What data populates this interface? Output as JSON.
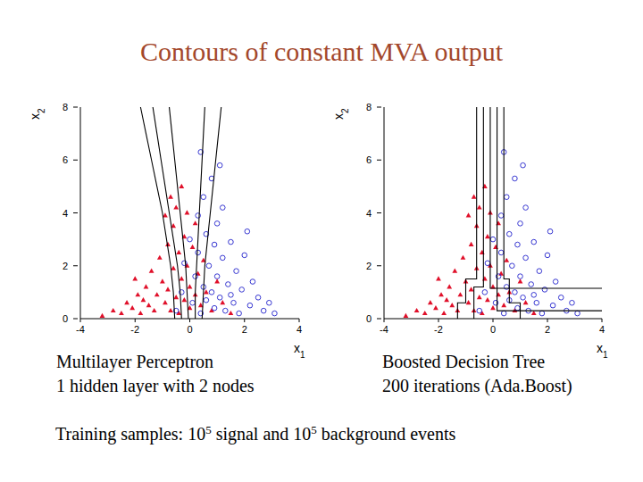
{
  "slide": {
    "title": "Contours of constant MVA output",
    "footer": [
      {
        "text": "Training samples:  10"
      },
      {
        "text": "5",
        "sup": true
      },
      {
        "text": " signal and 10"
      },
      {
        "text": "5",
        "sup": true
      },
      {
        "text": " background events"
      }
    ]
  },
  "chart_data": [
    {
      "type": "scatter",
      "title": "Multilayer Perceptron",
      "subtitle": "1 hidden layer with 2 nodes",
      "x_label": "x1",
      "y_label": "x2",
      "xlim": [
        -4,
        4
      ],
      "xticks": [
        -4,
        -2,
        0,
        2,
        4
      ],
      "ylim": [
        0,
        8
      ],
      "yticks": [
        0,
        2,
        4,
        6,
        8
      ],
      "series": [
        {
          "color": "#e0102a",
          "marker": "triangle",
          "x": [
            -3.2,
            -2.8,
            -2.5,
            -2.3,
            -2.1,
            -1.9,
            -1.8,
            -1.6,
            -1.5,
            -1.4,
            -1.3,
            -1.2,
            -1.1,
            -1.0,
            -0.9,
            -0.8,
            -0.8,
            -0.7,
            -0.6,
            -0.6,
            -0.5,
            -0.5,
            -0.4,
            -0.4,
            -0.3,
            -0.3,
            -0.2,
            -0.2,
            -0.1,
            -0.1,
            0.0,
            0.0,
            0.1,
            0.2,
            0.2,
            0.3,
            0.4,
            0.5,
            0.6,
            0.8,
            1.0,
            1.2,
            1.5,
            -2.0,
            -1.7,
            -0.9,
            -0.7
          ],
          "values": [
            0.1,
            0.3,
            0.2,
            0.6,
            0.4,
            0.9,
            0.2,
            1.2,
            0.5,
            1.8,
            0.3,
            0.9,
            2.3,
            1.4,
            0.6,
            2.8,
            1.1,
            0.3,
            3.5,
            1.9,
            0.8,
            4.2,
            2.5,
            0.2,
            1.5,
            5.0,
            3.1,
            0.7,
            2.0,
            4.0,
            1.2,
            0.4,
            2.7,
            0.9,
            3.6,
            1.7,
            0.5,
            2.2,
            1.0,
            0.3,
            1.4,
            0.6,
            0.2,
            1.5,
            0.7,
            3.9,
            4.6
          ]
        },
        {
          "color": "#2222cc",
          "marker": "open-circle",
          "x": [
            -0.5,
            -0.3,
            -0.2,
            0.0,
            0.1,
            0.2,
            0.3,
            0.3,
            0.4,
            0.5,
            0.5,
            0.6,
            0.6,
            0.7,
            0.8,
            0.8,
            0.9,
            0.9,
            1.0,
            1.0,
            1.1,
            1.2,
            1.2,
            1.3,
            1.4,
            1.5,
            1.6,
            1.7,
            1.8,
            1.9,
            2.0,
            2.2,
            2.3,
            2.5,
            2.7,
            2.9,
            3.1,
            0.4,
            1.1,
            2.1,
            1.5
          ],
          "values": [
            0.3,
            1.0,
            2.1,
            3.0,
            0.6,
            1.6,
            3.9,
            2.5,
            0.2,
            1.2,
            4.6,
            3.2,
            0.7,
            2.0,
            5.3,
            1.0,
            2.8,
            0.4,
            3.6,
            1.6,
            0.8,
            2.3,
            4.2,
            0.3,
            1.3,
            2.9,
            0.6,
            1.8,
            0.2,
            1.1,
            2.4,
            0.5,
            1.4,
            0.8,
            0.3,
            0.6,
            0.2,
            6.3,
            5.8,
            3.3,
            0.9
          ]
        },
        {
          "type": "line",
          "color": "#000000",
          "x": [
            -0.55,
            -0.6,
            -0.7,
            -0.85,
            -1.0,
            -1.2,
            -1.4,
            -1.6,
            -1.8
          ],
          "values": [
            0,
            1,
            2,
            3,
            4,
            5,
            6,
            7,
            8
          ]
        },
        {
          "type": "line",
          "color": "#000000",
          "x": [
            -0.3,
            -0.35,
            -0.45,
            -0.6,
            -0.75,
            -0.9,
            -1.05,
            -1.2,
            -1.35
          ],
          "values": [
            0,
            1,
            2,
            3,
            4,
            5,
            6,
            7,
            8
          ]
        },
        {
          "type": "line",
          "color": "#000000",
          "x": [
            -0.05,
            -0.1,
            -0.15,
            -0.25,
            -0.35,
            -0.45,
            -0.55,
            -0.65,
            -0.75
          ],
          "values": [
            0,
            1,
            2,
            3,
            4,
            5,
            6,
            7,
            8
          ]
        },
        {
          "type": "line",
          "color": "#000000",
          "x": [
            0.2,
            0.2,
            0.25,
            0.3,
            0.35,
            0.4,
            0.45,
            0.5,
            0.55
          ],
          "values": [
            0,
            1,
            2,
            3,
            4,
            5,
            6,
            7,
            8
          ]
        },
        {
          "type": "line",
          "color": "#000000",
          "x": [
            0.45,
            0.5,
            0.55,
            0.65,
            0.75,
            0.85,
            0.95,
            1.05,
            1.15
          ],
          "values": [
            0,
            1,
            2,
            3,
            4,
            5,
            6,
            7,
            8
          ]
        }
      ]
    },
    {
      "type": "scatter",
      "title": "Boosted Decision Tree",
      "subtitle": "200 iterations (Ada.Boost)",
      "x_label": "x1",
      "y_label": "x2",
      "xlim": [
        -4,
        4
      ],
      "xticks": [
        -4,
        -2,
        0,
        2,
        4
      ],
      "ylim": [
        0,
        8
      ],
      "yticks": [
        0,
        2,
        4,
        6,
        8
      ],
      "series": [
        {
          "color": "#e0102a",
          "marker": "triangle",
          "x": [
            -3.2,
            -2.8,
            -2.5,
            -2.3,
            -2.1,
            -1.9,
            -1.8,
            -1.6,
            -1.5,
            -1.4,
            -1.3,
            -1.2,
            -1.1,
            -1.0,
            -0.9,
            -0.8,
            -0.8,
            -0.7,
            -0.6,
            -0.6,
            -0.5,
            -0.5,
            -0.4,
            -0.4,
            -0.3,
            -0.3,
            -0.2,
            -0.2,
            -0.1,
            -0.1,
            0.0,
            0.0,
            0.1,
            0.2,
            0.2,
            0.3,
            0.4,
            0.5,
            0.6,
            0.8,
            1.0,
            1.2,
            1.5,
            -2.0,
            -1.7,
            -0.9,
            -0.7
          ],
          "values": [
            0.1,
            0.3,
            0.2,
            0.6,
            0.4,
            0.9,
            0.2,
            1.2,
            0.5,
            1.8,
            0.3,
            0.9,
            2.3,
            1.4,
            0.6,
            2.8,
            1.1,
            0.3,
            3.5,
            1.9,
            0.8,
            4.2,
            2.5,
            0.2,
            1.5,
            5.0,
            3.1,
            0.7,
            2.0,
            4.0,
            1.2,
            0.4,
            2.7,
            0.9,
            3.6,
            1.7,
            0.5,
            2.2,
            1.0,
            0.3,
            1.4,
            0.6,
            0.2,
            1.5,
            0.7,
            3.9,
            4.6
          ]
        },
        {
          "color": "#2222cc",
          "marker": "open-circle",
          "x": [
            -0.5,
            -0.3,
            -0.2,
            0.0,
            0.1,
            0.2,
            0.3,
            0.3,
            0.4,
            0.5,
            0.5,
            0.6,
            0.6,
            0.7,
            0.8,
            0.8,
            0.9,
            0.9,
            1.0,
            1.0,
            1.1,
            1.2,
            1.2,
            1.3,
            1.4,
            1.5,
            1.6,
            1.7,
            1.8,
            1.9,
            2.0,
            2.2,
            2.3,
            2.5,
            2.7,
            2.9,
            3.1,
            0.4,
            1.1,
            2.1,
            1.5
          ],
          "values": [
            0.3,
            1.0,
            2.1,
            3.0,
            0.6,
            1.6,
            3.9,
            2.5,
            0.2,
            1.2,
            4.6,
            3.2,
            0.7,
            2.0,
            5.3,
            1.0,
            2.8,
            0.4,
            3.6,
            1.6,
            0.8,
            2.3,
            4.2,
            0.3,
            1.3,
            2.9,
            0.6,
            1.8,
            0.2,
            1.1,
            2.4,
            0.5,
            1.4,
            0.8,
            0.3,
            0.6,
            0.2,
            6.3,
            5.8,
            3.3,
            0.9
          ]
        },
        {
          "type": "line",
          "color": "#000000",
          "x": [
            -0.6,
            -0.6,
            -1.0,
            -1.0,
            -1.3,
            -1.3
          ],
          "values": [
            8,
            1.5,
            1.5,
            0.6,
            0.6,
            0
          ]
        },
        {
          "type": "line",
          "color": "#000000",
          "x": [
            -0.35,
            -0.35,
            -0.7,
            -0.7
          ],
          "values": [
            8,
            1.2,
            1.2,
            0
          ]
        },
        {
          "type": "line",
          "color": "#000000",
          "x": [
            -0.1,
            -0.1,
            4
          ],
          "values": [
            8,
            1.15,
            1.15
          ]
        },
        {
          "type": "line",
          "color": "#000000",
          "x": [
            0.15,
            0.15,
            4
          ],
          "values": [
            8,
            0.3,
            0.3
          ]
        },
        {
          "type": "line",
          "color": "#000000",
          "x": [
            0.4,
            0.4,
            0.6,
            0.6,
            1.0,
            1.0
          ],
          "values": [
            8,
            1.5,
            1.5,
            0.6,
            0.6,
            0
          ]
        }
      ]
    }
  ]
}
